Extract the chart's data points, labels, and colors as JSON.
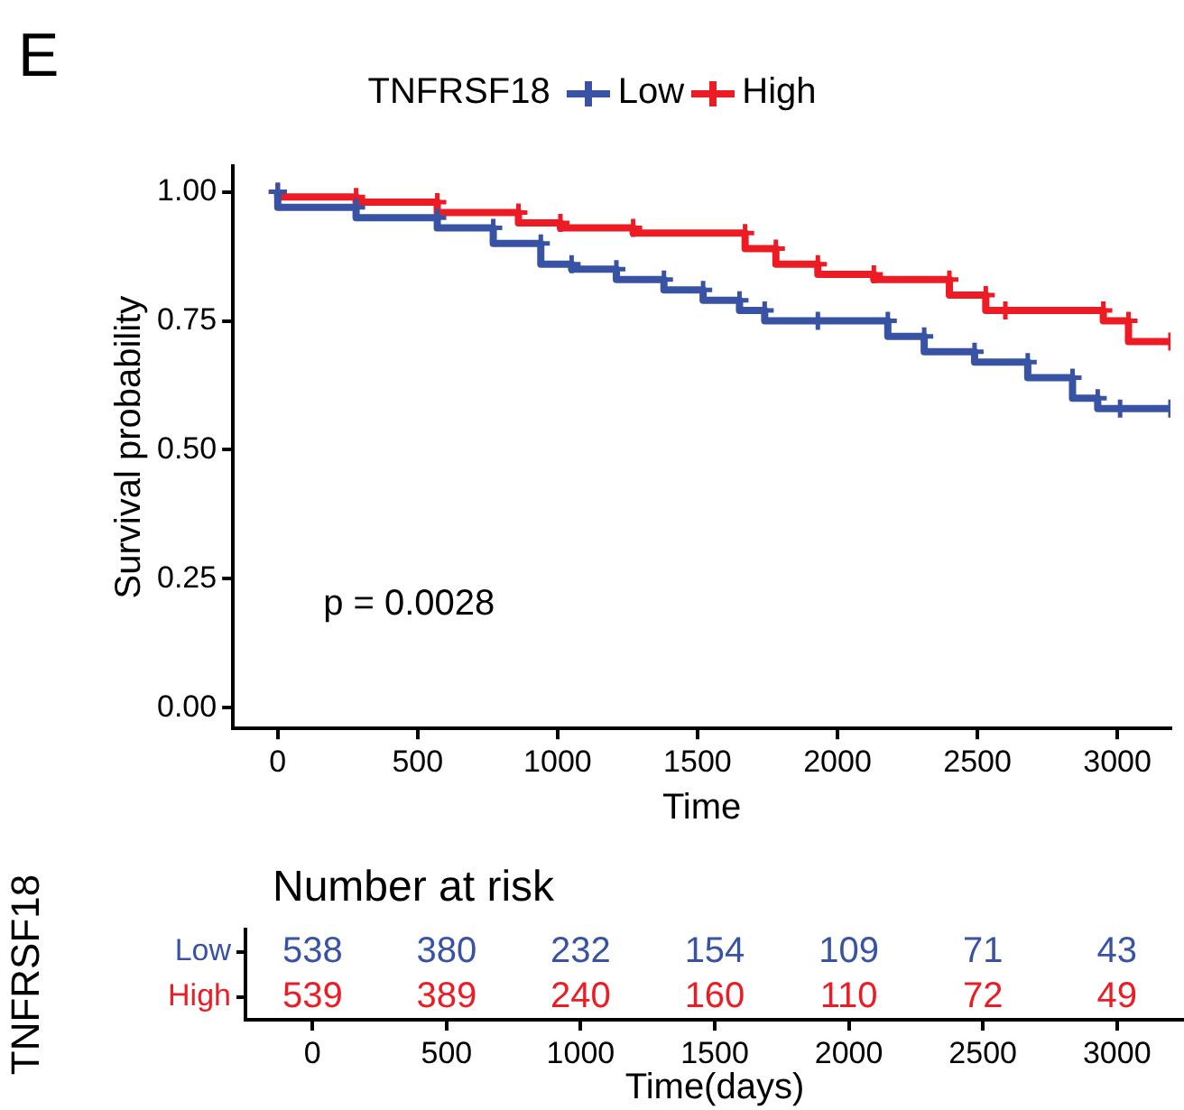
{
  "chart_data": [
    {
      "type": "step",
      "title": "E",
      "xlabel": "Time",
      "ylabel": "Survival probability",
      "legend_title": "TNFRSF18",
      "legend": "top",
      "marker": "cross",
      "grid": false,
      "xlim": [
        -160,
        3190
      ],
      "xticks": [
        0,
        500,
        1000,
        1500,
        2000,
        2500,
        3000
      ],
      "ylim": [
        -0.04,
        1.05
      ],
      "yticks": [
        {
          "value": 0,
          "label": "0.00"
        },
        {
          "value": 0.25,
          "label": "0.25"
        },
        {
          "value": 0.5,
          "label": "0.50"
        },
        {
          "value": 0.75,
          "label": "0.75"
        },
        {
          "value": 1,
          "label": "1.00"
        }
      ],
      "annotations": [
        "p = 0.0028"
      ],
      "series": [
        {
          "name": "Low",
          "color": "#3953a4",
          "x": [
            0,
            280,
            570,
            770,
            940,
            1050,
            1210,
            1380,
            1520,
            1650,
            1740,
            1930,
            2180,
            2310,
            2490,
            2680,
            2840,
            2930,
            3010,
            3190
          ],
          "values": [
            1,
            0.97,
            0.95,
            0.93,
            0.9,
            0.86,
            0.85,
            0.83,
            0.81,
            0.79,
            0.77,
            0.75,
            0.75,
            0.72,
            0.69,
            0.67,
            0.64,
            0.6,
            0.58,
            0.58
          ]
        },
        {
          "name": "High",
          "color": "#ed1c24",
          "x": [
            0,
            280,
            570,
            860,
            1010,
            1270,
            1670,
            1780,
            1930,
            2130,
            2400,
            2530,
            2600,
            2950,
            3040,
            3190
          ],
          "values": [
            1,
            0.99,
            0.98,
            0.96,
            0.94,
            0.93,
            0.92,
            0.89,
            0.86,
            0.84,
            0.83,
            0.8,
            0.77,
            0.77,
            0.75,
            0.71
          ]
        }
      ]
    },
    {
      "type": "heatmap",
      "title": "Number at risk",
      "xlabel": "Time(days)",
      "ylabel": "TNFRSF18",
      "data_labels": true,
      "categories": [
        "0",
        "500",
        "1000",
        "1500",
        "2000",
        "2500",
        "3000"
      ],
      "y_categories": [
        "Low",
        "High"
      ],
      "colors": [
        "#3953a4",
        "#ed1c24"
      ],
      "cells": [
        [
          538,
          380,
          232,
          154,
          109,
          71,
          43
        ],
        [
          539,
          389,
          240,
          160,
          110,
          72,
          49
        ]
      ]
    }
  ]
}
